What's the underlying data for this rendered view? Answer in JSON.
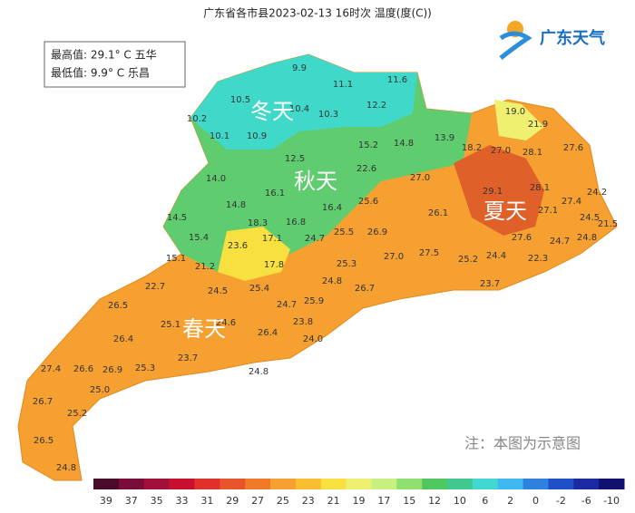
{
  "header": {
    "title": "广东省各市县2023-02-13 16时次 温度(度(C))",
    "logo": "广东天气"
  },
  "extremes": {
    "max": "最高值: 29.1° C 五华",
    "min": "最低值: 9.9° C 乐昌"
  },
  "seasons": [
    "冬天",
    "秋天",
    "夏天",
    "春天"
  ],
  "note": "注：本图为示意图",
  "stations": [
    "9.9",
    "11.1",
    "11.6",
    "10.5",
    "10.4",
    "10.3",
    "12.2",
    "10.2",
    "10.1",
    "10.9",
    "12.5",
    "15.2",
    "14.8",
    "13.9",
    "19.0",
    "21.9",
    "18.2",
    "27.0",
    "28.1",
    "27.6",
    "22.6",
    "14.0",
    "16.1",
    "27.0",
    "29.1",
    "28.1",
    "24.2",
    "14.8",
    "25.6",
    "27.4",
    "27.1",
    "14.5",
    "18.3",
    "16.8",
    "16.4",
    "26.1",
    "24.5",
    "21.5",
    "15.4",
    "17.1",
    "23.6",
    "24.7",
    "25.5",
    "26.9",
    "27.6",
    "24.7",
    "24.8",
    "15.1",
    "21.2",
    "17.8",
    "25.3",
    "27.0",
    "27.5",
    "25.2",
    "24.4",
    "22.3",
    "22.7",
    "24.5",
    "25.4",
    "24.8",
    "26.7",
    "23.7",
    "26.5",
    "24.7",
    "25.9",
    "25.1",
    "24.6",
    "23.8",
    "26.4",
    "26.4",
    "24.0",
    "23.7",
    "27.4",
    "26.6",
    "26.9",
    "25.3",
    "24.8",
    "25.0",
    "26.7",
    "25.2",
    "26.5",
    "24.8"
  ],
  "legend": {
    "labels": [
      "39",
      "37",
      "35",
      "33",
      "31",
      "29",
      "27",
      "25",
      "23",
      "21",
      "19",
      "17",
      "15",
      "12",
      "10",
      "6",
      "2",
      "0",
      "-2",
      "-6",
      "-10"
    ],
    "colors": [
      "#4a0a2a",
      "#7a0c3a",
      "#a0103a",
      "#c8102e",
      "#e0302a",
      "#e8552a",
      "#f07a28",
      "#f5a030",
      "#f8c030",
      "#f8e040",
      "#f0f070",
      "#c8f080",
      "#90e070",
      "#50c860",
      "#40c890",
      "#40d8d0",
      "#40b8f0",
      "#3080e0",
      "#2050c8",
      "#1a2aa0",
      "#101070"
    ]
  }
}
